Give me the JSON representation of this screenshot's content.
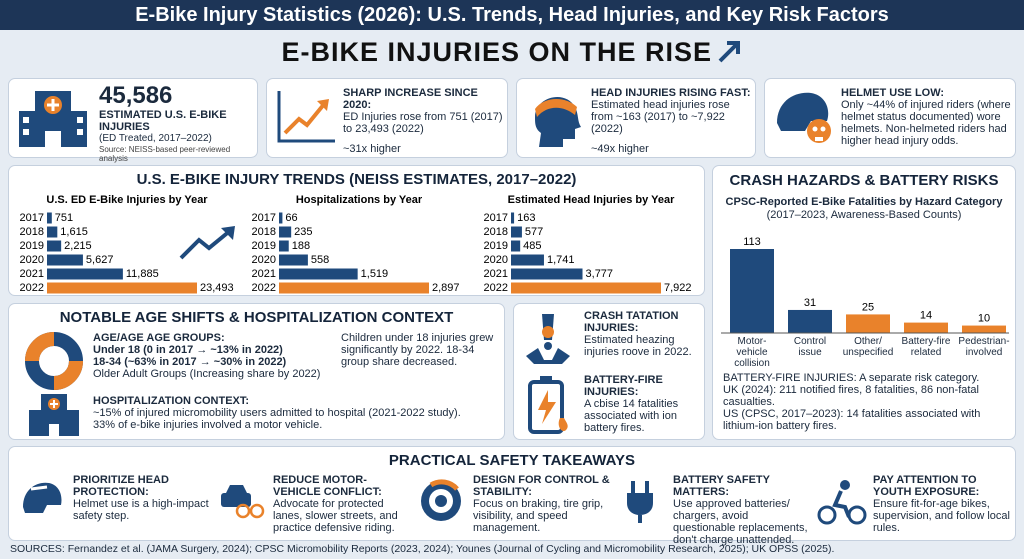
{
  "header": {
    "title": "E-Bike Injury Statistics (2026): U.S. Trends, Head Injuries, and Key Risk Factors"
  },
  "banner": {
    "title": "E-BIKE INJURIES ON THE RISE"
  },
  "cards": [
    {
      "value": "45,586",
      "label": "ESTIMATED U.S. E-BIKE INJURIES",
      "sub": "(ED Treated, 2017–2022)",
      "source": "Source: NEISS-based peer-reviewed analysis"
    },
    {
      "heading": "SHARP INCREASE SINCE 2020:",
      "text": "ED Injuries rose from 751 (2017) to 23,493 (2022)",
      "note": "~31x higher"
    },
    {
      "heading": "HEAD INJURIES RISING FAST:",
      "text": "Estimated head injuries rose from ~163 (2017) to ~7,922 (2022)",
      "note": "~49x higher"
    },
    {
      "heading": "HELMET USE LOW:",
      "text": "Only ~44% of injured riders (where helmet status documented) wore helmets. Non-helmeted riders had higher head injury odds."
    }
  ],
  "trends": {
    "title": "U.S. E-BIKE INJURY TRENDS (NEISS ESTIMATES, 2017–2022)",
    "charts": [
      {
        "type": "bar",
        "orientation": "horizontal",
        "title": "U.S. ED E-Bike Injuries by Year",
        "categories": [
          "2017",
          "2018",
          "2019",
          "2020",
          "2021",
          "2022"
        ],
        "values": [
          751,
          1615,
          2215,
          5627,
          11885,
          23493
        ],
        "value_labels": [
          "751",
          "1,615",
          "2,215",
          "5,627",
          "11,885",
          "23,493"
        ],
        "colors": [
          "#1f4a7c",
          "#1f4a7c",
          "#1f4a7c",
          "#1f4a7c",
          "#1f4a7c",
          "#e9822b"
        ]
      },
      {
        "type": "bar",
        "orientation": "horizontal",
        "title": "Hospitalizations by Year",
        "categories": [
          "2017",
          "2018",
          "2019",
          "2020",
          "2021",
          "2022"
        ],
        "values": [
          66,
          235,
          188,
          558,
          1519,
          2897
        ],
        "value_labels": [
          "66",
          "235",
          "188",
          "558",
          "1,519",
          "2,897"
        ],
        "colors": [
          "#1f4a7c",
          "#1f4a7c",
          "#1f4a7c",
          "#1f4a7c",
          "#1f4a7c",
          "#e9822b"
        ]
      },
      {
        "type": "bar",
        "orientation": "horizontal",
        "title": "Estimated Head Injuries by Year",
        "categories": [
          "2017",
          "2018",
          "2019",
          "2020",
          "2021",
          "2022"
        ],
        "values": [
          163,
          577,
          485,
          1741,
          3777,
          7922
        ],
        "value_labels": [
          "163",
          "577",
          "485",
          "1,741",
          "3,777",
          "7,922"
        ],
        "colors": [
          "#1f4a7c",
          "#1f4a7c",
          "#1f4a7c",
          "#1f4a7c",
          "#1f4a7c",
          "#e9822b"
        ]
      }
    ]
  },
  "hazards": {
    "title": "CRASH HAZARDS & BATTERY RISKS",
    "chart": {
      "type": "bar",
      "title": "CPSC-Reported E-Bike Fatalities by Hazard Category",
      "subtitle": "(2017–2023, Awareness-Based Counts)",
      "categories": [
        "Motor-vehicle collision",
        "Control issue",
        "Other/ unspecified",
        "Battery-fire related",
        "Pedestrian-involved"
      ],
      "values": [
        113,
        31,
        25,
        14,
        10
      ],
      "colors": [
        "#1f4a7c",
        "#1f4a7c",
        "#e9822b",
        "#e9822b",
        "#e9822b"
      ]
    },
    "battery": [
      "BATTERY-FIRE INJURIES: A separate risk category.",
      "UK (2024): 211 notified fires, 8 fatalities, 86 non-fatal casualties.",
      "US (CPSC, 2017–2023): 14 fatalities associated with lithium-ion battery fires."
    ]
  },
  "age": {
    "title": "NOTABLE AGE SHIFTS & HOSPITALIZATION CONTEXT",
    "groups_heading": "AGE/AGE AGE GROUPS:",
    "groups": [
      "Under 18 (0 in 2017 → ~13% in 2022)",
      "18-34 (~63% in 2017 → ~30% in 2022)",
      "Older Adult Groups (Increasing share by 2022)"
    ],
    "note": "Children under 18 injuries grew significantly by 2022. 18-34 group share decreased.",
    "hosp_heading": "HOSPITALIZATION CONTEXT:",
    "hosp": [
      "~15% of injured micromobility users admitted to hospital (2021-2022 study).",
      "33% of e-bike injuries involved a motor vehicle."
    ]
  },
  "side": {
    "crash_heading": "CRASH TATATION INJURIES:",
    "crash_text": "Estimated heazing injuries roove in 2022.",
    "battery_heading": "BATTERY-FIRE INJURIES:",
    "battery_text": "A cbise 14 fatalities associated with ion battery fires."
  },
  "takeaways": {
    "title": "PRACTICAL SAFETY TAKEAWAYS",
    "items": [
      {
        "heading": "PRIORITIZE HEAD PROTECTION:",
        "text": "Helmet use is a high-impact safety step."
      },
      {
        "heading": "REDUCE MOTOR-VEHICLE CONFLICT:",
        "text": "Advocate for protected lanes, slower streets, and practice defensive riding."
      },
      {
        "heading": "DESIGN FOR CONTROL & STABILITY:",
        "text": "Focus on braking, tire grip, visibility, and speed management."
      },
      {
        "heading": "BATTERY SAFETY MATTERS:",
        "text": "Use approved batteries/ chargers, avoid questionable replacements, don't charge unattended."
      },
      {
        "heading": "PAY ATTENTION TO YOUTH EXPOSURE:",
        "text": "Ensure fit-for-age bikes, supervision, and follow local rules."
      }
    ]
  },
  "sources": "SOURCES: Fernandez et al. (JAMA Surgery, 2024); CPSC Micromobility Reports (2023, 2024); Younes (Journal of Cycling and Micromobility Research, 2025); UK OPSS (2025)."
}
